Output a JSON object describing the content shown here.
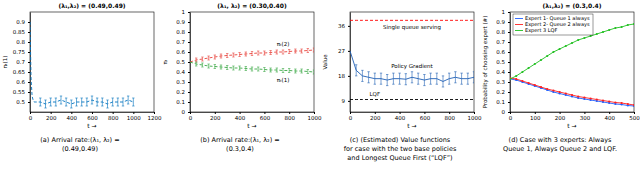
{
  "chart_data": [
    {
      "type": "line",
      "title": "(λ₁,λ₂) = (0.49,0.49)",
      "x_label": "t →",
      "y_label": "πₜ(1)",
      "caption": [
        "(a) Arrival rate:(λ₁, λ₂) =",
        "(0.49,0.49)"
      ],
      "xlim": [
        0,
        1200
      ],
      "xticks": [
        0,
        200,
        400,
        600,
        800,
        1000,
        1200
      ],
      "ylim": [
        0.45,
        0.95
      ],
      "yticks": [
        0.5,
        0.55,
        0.6,
        0.65,
        0.7,
        0.75,
        0.8,
        0.85,
        0.9
      ],
      "x": [
        0,
        10,
        20,
        30,
        40,
        50,
        100,
        150,
        200,
        250,
        300,
        350,
        400,
        450,
        500,
        550,
        600,
        650,
        700,
        750,
        800,
        850,
        900,
        950,
        1000
      ],
      "series": [
        {
          "color": "#0072bd",
          "line_style": "dashed",
          "values": [
            0.9,
            0.62,
            0.53,
            0.51,
            0.5,
            0.5,
            0.5,
            0.49,
            0.5,
            0.5,
            0.51,
            0.5,
            0.49,
            0.5,
            0.5,
            0.5,
            0.51,
            0.5,
            0.5,
            0.49,
            0.5,
            0.5,
            0.5,
            0.51,
            0.5
          ],
          "errors": [
            0,
            0,
            0,
            0,
            0,
            0,
            0.02,
            0.02,
            0.02,
            0.02,
            0.02,
            0.02,
            0.02,
            0.02,
            0.02,
            0.02,
            0.02,
            0.02,
            0.02,
            0.02,
            0.02,
            0.02,
            0.02,
            0.02,
            0.02
          ]
        }
      ]
    },
    {
      "type": "line",
      "title": "(λ₁, λ₂) = (0.30,0.40)",
      "x_label": "t →",
      "y_label": "πₜ",
      "caption": [
        "(b) Arrival rate:(λ₁, λ₂) =",
        "(0.3,0.4)"
      ],
      "xlim": [
        0,
        1000
      ],
      "xticks": [
        0,
        200,
        400,
        600,
        800,
        1000
      ],
      "ylim": [
        0,
        1
      ],
      "yticks": [
        0,
        0.1,
        0.2,
        0.3,
        0.4,
        0.5,
        0.6,
        0.7,
        0.8,
        0.9,
        1
      ],
      "x": [
        0,
        50,
        100,
        150,
        200,
        250,
        300,
        350,
        400,
        450,
        500,
        550,
        600,
        650,
        700,
        750,
        800,
        850,
        900,
        950,
        1000
      ],
      "series": [
        {
          "name": "πₜ(2)",
          "color": "#e8423a",
          "line_style": "dashed",
          "values": [
            0.5,
            0.52,
            0.53,
            0.54,
            0.55,
            0.56,
            0.565,
            0.57,
            0.575,
            0.58,
            0.585,
            0.59,
            0.59,
            0.595,
            0.6,
            0.6,
            0.605,
            0.61,
            0.61,
            0.615,
            0.62
          ],
          "errors": [
            0,
            0.02,
            0.02,
            0.02,
            0.02,
            0.02,
            0.02,
            0.02,
            0.02,
            0.02,
            0.02,
            0.02,
            0.02,
            0.02,
            0.02,
            0.02,
            0.02,
            0.02,
            0.02,
            0.02,
            0.02
          ]
        },
        {
          "name": "πₜ(1)",
          "color": "#3aa845",
          "line_style": "dashed",
          "values": [
            0.5,
            0.48,
            0.47,
            0.46,
            0.455,
            0.45,
            0.445,
            0.44,
            0.44,
            0.435,
            0.43,
            0.43,
            0.425,
            0.42,
            0.42,
            0.415,
            0.415,
            0.41,
            0.41,
            0.405,
            0.4
          ],
          "errors": [
            0,
            0.02,
            0.02,
            0.02,
            0.02,
            0.02,
            0.02,
            0.02,
            0.02,
            0.02,
            0.02,
            0.02,
            0.02,
            0.02,
            0.02,
            0.02,
            0.02,
            0.02,
            0.02,
            0.02,
            0.02
          ]
        }
      ]
    },
    {
      "type": "line",
      "x_label": "t →",
      "y_label": "Value",
      "caption": [
        "(c) (Estimated) Value functions",
        "for case with the two base policies",
        "and Longest Queue First (“LQF”)"
      ],
      "xlim": [
        0,
        1000
      ],
      "xticks": [
        0,
        200,
        400,
        600,
        800,
        1000
      ],
      "ylim": [
        5,
        41
      ],
      "yticks": [
        9,
        18,
        27,
        36
      ],
      "x": [
        0,
        50,
        100,
        150,
        200,
        250,
        300,
        350,
        400,
        450,
        500,
        550,
        600,
        650,
        700,
        750,
        800,
        850,
        900,
        950,
        1000
      ],
      "series": [
        {
          "name": "Single queue serving",
          "color": "#ff0000",
          "line_style": "dashed",
          "values": [
            38,
            38,
            38,
            38,
            38,
            38,
            38,
            38,
            38,
            38,
            38,
            38,
            38,
            38,
            38,
            38,
            38,
            38,
            38,
            38,
            38
          ]
        },
        {
          "name": "Policy Gradient",
          "color": "#1f5fb4",
          "line_style": "solid",
          "values": [
            27,
            20,
            18,
            17.5,
            17,
            17,
            16.5,
            17,
            17,
            16.8,
            17.5,
            17,
            16.5,
            17,
            17,
            16,
            17,
            17.5,
            17,
            17,
            17.5
          ],
          "errors": [
            0,
            2,
            2,
            2,
            2,
            2,
            2,
            2,
            2,
            2,
            2,
            2,
            2,
            2,
            2,
            2,
            2,
            2,
            2,
            2,
            2
          ]
        },
        {
          "name": "LQF",
          "color": "#000000",
          "line_style": "dashed",
          "values": [
            9.5,
            9.5,
            9.5,
            9.5,
            9.5,
            9.5,
            9.5,
            9.5,
            9.5,
            9.5,
            9.5,
            9.5,
            9.5,
            9.5,
            9.5,
            9.5,
            9.5,
            9.5,
            9.5,
            9.5,
            9.5
          ]
        }
      ]
    },
    {
      "type": "line",
      "title": "(λ₁,λ₂) = (0.3,0.4)",
      "x_label": "t →",
      "y_label": "Probability of choosing expert (#)",
      "caption": [
        "(d) Case with 3 experts: Always",
        "Queue 1, Always Queue 2 and LQF."
      ],
      "legend": "upper left",
      "xlim": [
        0,
        500
      ],
      "xticks": [
        0,
        100,
        200,
        300,
        400,
        500
      ],
      "ylim": [
        0,
        1
      ],
      "yticks": [
        0,
        0.1,
        0.2,
        0.3,
        0.4,
        0.5,
        0.6,
        0.7,
        0.8,
        0.9,
        1
      ],
      "x": [
        0,
        25,
        50,
        75,
        100,
        125,
        150,
        175,
        200,
        225,
        250,
        275,
        300,
        325,
        350,
        375,
        400,
        425,
        450,
        475,
        500
      ],
      "series": [
        {
          "name": "Expert 1- Queue 1 always",
          "color": "#1f5fff",
          "marker": "circle",
          "values": [
            0.33,
            0.32,
            0.3,
            0.28,
            0.26,
            0.24,
            0.22,
            0.2,
            0.185,
            0.17,
            0.155,
            0.14,
            0.13,
            0.12,
            0.11,
            0.1,
            0.09,
            0.08,
            0.075,
            0.065,
            0.06
          ]
        },
        {
          "name": "Expert 2- Queue 2 always",
          "color": "#ff2020",
          "marker": "circle",
          "values": [
            0.34,
            0.33,
            0.31,
            0.29,
            0.27,
            0.25,
            0.23,
            0.215,
            0.2,
            0.185,
            0.17,
            0.155,
            0.145,
            0.135,
            0.125,
            0.115,
            0.105,
            0.095,
            0.09,
            0.08,
            0.07
          ]
        },
        {
          "name": "Expert 3 LQF",
          "color": "#20c020",
          "marker": "circle",
          "values": [
            0.33,
            0.36,
            0.4,
            0.44,
            0.48,
            0.52,
            0.56,
            0.6,
            0.63,
            0.66,
            0.69,
            0.72,
            0.74,
            0.76,
            0.78,
            0.8,
            0.82,
            0.84,
            0.85,
            0.87,
            0.88
          ]
        }
      ]
    }
  ]
}
